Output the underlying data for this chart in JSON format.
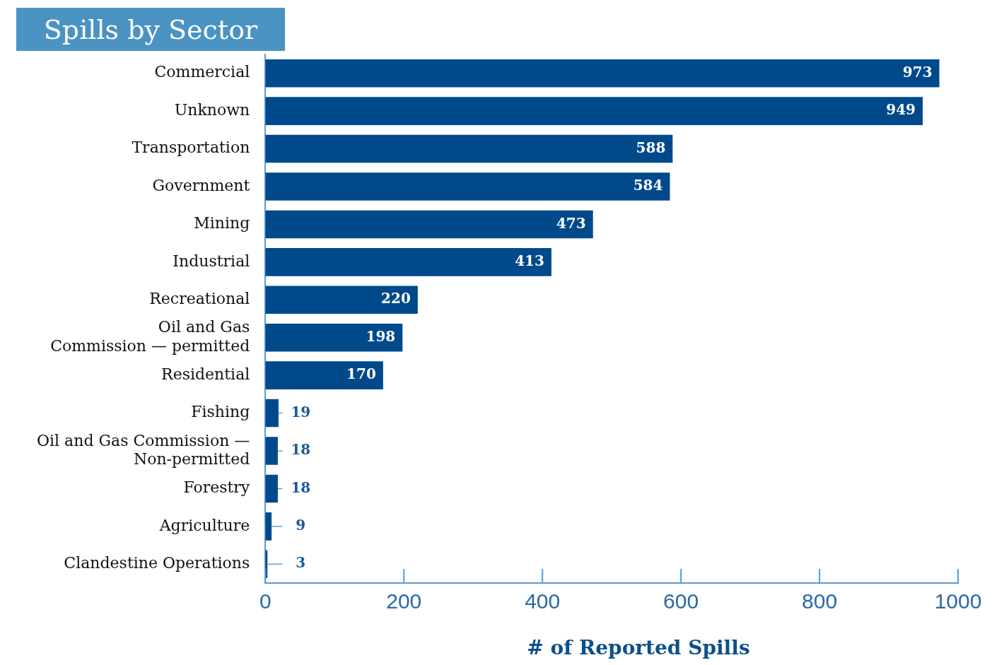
{
  "chart_data": {
    "type": "bar",
    "orientation": "horizontal",
    "title": "Spills by Sector",
    "xlabel": "# of Reported Spills",
    "categories": [
      "Commercial",
      "Unknown",
      "Transportation",
      "Government",
      "Mining",
      "Industrial",
      "Recreational",
      "Oil and Gas\nCommission — permitted",
      "Residential",
      "Fishing",
      "Oil and Gas Commission —\nNon-permitted",
      "Forestry",
      "Agriculture",
      "Clandestine Operations"
    ],
    "values": [
      973,
      949,
      588,
      584,
      473,
      413,
      220,
      198,
      170,
      19,
      18,
      18,
      9,
      3
    ],
    "color": "#004a8c",
    "xlim": [
      0,
      1000
    ],
    "xticks": [
      0,
      200,
      400,
      600,
      800,
      1000
    ],
    "grid": false,
    "legend": false,
    "data_labels": true
  }
}
